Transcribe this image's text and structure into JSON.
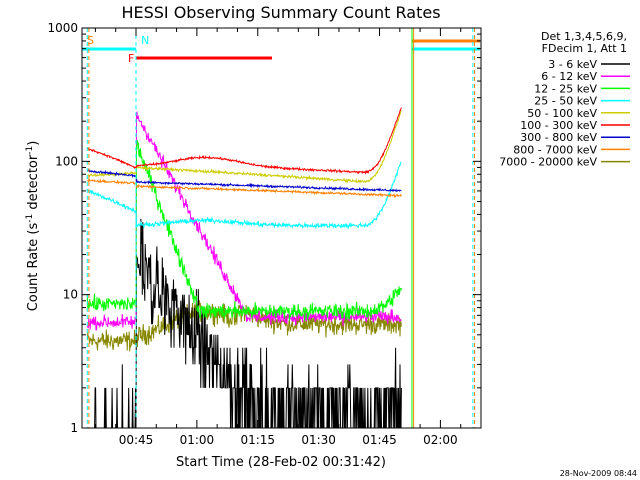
{
  "chart_data": {
    "type": "line",
    "title": "HESSI Observing Summary Count Rates",
    "xlabel": "Start Time (28-Feb-02 00:31:42)",
    "ylabel_main": "Count Rate (s",
    "ylabel_sup1": "-1",
    "ylabel_mid": " detector",
    "ylabel_sup2": "-1",
    "ylabel_end": ")",
    "yscale": "log",
    "ylim": [
      1,
      1000
    ],
    "xlim_minutes": [
      31.7,
      130
    ],
    "xticks": [
      {
        "m": 45,
        "label": "00:45"
      },
      {
        "m": 60,
        "label": "01:00"
      },
      {
        "m": 75,
        "label": "01:15"
      },
      {
        "m": 90,
        "label": "01:30"
      },
      {
        "m": 105,
        "label": "01:45"
      },
      {
        "m": 120,
        "label": "02:00"
      }
    ],
    "yticks": [
      {
        "v": 1,
        "label": "1"
      },
      {
        "v": 10,
        "label": "10"
      },
      {
        "v": 100,
        "label": "100"
      },
      {
        "v": 1000,
        "label": "1000"
      }
    ],
    "legend_header": [
      "Det 1,3,4,5,6,9,",
      "FDecim 1, Att 1"
    ],
    "legend_placement": "right",
    "series": [
      {
        "name": "3 - 6 keV",
        "color": "#000000"
      },
      {
        "name": "6 - 12 keV",
        "color": "#ff00ff"
      },
      {
        "name": "12 - 25 keV",
        "color": "#00ff00"
      },
      {
        "name": "25 - 50 keV",
        "color": "#00ffff"
      },
      {
        "name": "50 - 100 keV",
        "color": "#cccc00"
      },
      {
        "name": "100 - 300 keV",
        "color": "#ff0000"
      },
      {
        "name": "300 - 800 keV",
        "color": "#0000cc"
      },
      {
        "name": "800 - 7000 keV",
        "color": "#ff8000"
      },
      {
        "name": "7000 - 20000 keV",
        "color": "#888800"
      }
    ],
    "flags": [
      {
        "label": "S",
        "color": "#ff8000",
        "start": 31.7,
        "end": 45
      },
      {
        "label": "N",
        "color": "#00ffff",
        "start": 31.7,
        "end": 45
      },
      {
        "label": "F",
        "color": "#ff0000",
        "start": 45,
        "end": 78.5
      }
    ]
  },
  "timestamp": "28-Nov-2009 08:44"
}
